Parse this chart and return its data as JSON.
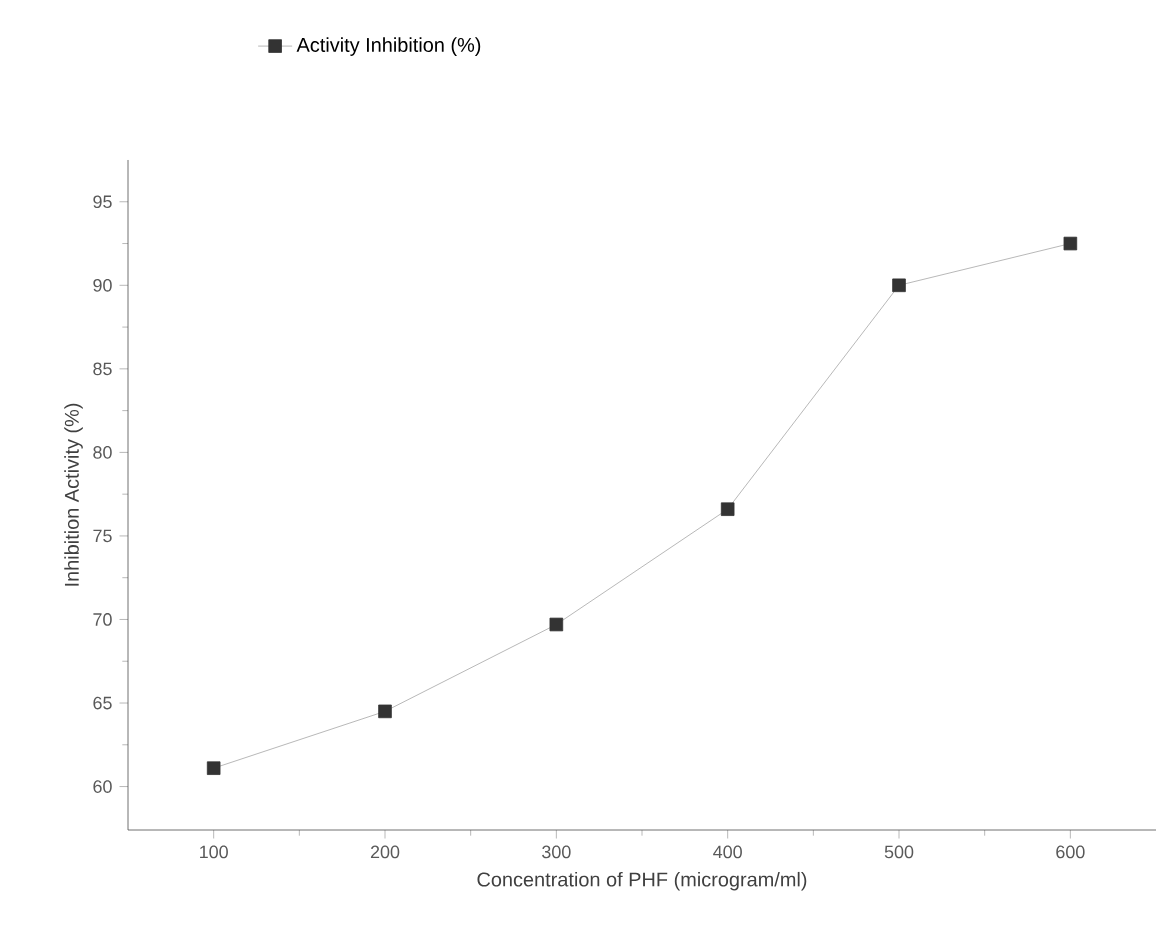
{
  "chart_data": {
    "type": "line",
    "xlabel": "Concentration of PHF (microgram/ml)",
    "ylabel": "Inhibition Activity (%)",
    "x": [
      100,
      200,
      300,
      400,
      500,
      600
    ],
    "series": [
      {
        "name": "Activity Inhibition (%)",
        "color": "#333333",
        "values": [
          61.1,
          64.5,
          69.7,
          76.6,
          90.0,
          92.5
        ]
      }
    ],
    "xlim": [
      50,
      650
    ],
    "ylim": [
      57.4,
      97.5
    ],
    "xticks": [
      100,
      200,
      300,
      400,
      500,
      600
    ],
    "yticks": [
      60,
      65,
      70,
      75,
      80,
      85,
      90,
      95
    ],
    "marker": "square",
    "line_style": "solid",
    "legend": "top left",
    "grid": false
  }
}
